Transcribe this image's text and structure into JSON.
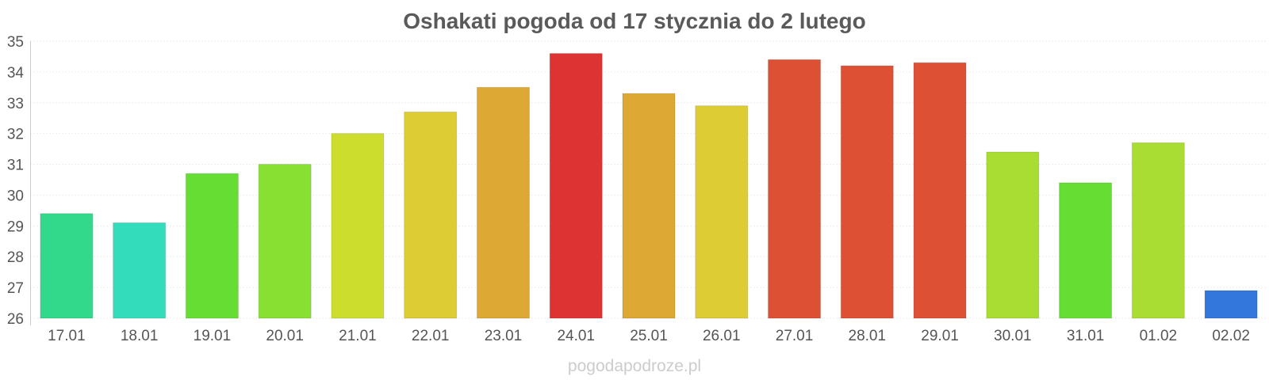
{
  "chart_data": {
    "type": "bar",
    "title": "Oshakati pogoda od 17 stycznia do 2 lutego",
    "xlabel": "",
    "ylabel": "",
    "ylim": [
      26,
      35
    ],
    "yticks": [
      "26",
      "27",
      "28",
      "29",
      "30",
      "31",
      "32",
      "33",
      "34",
      "35"
    ],
    "grid": true,
    "categories": [
      "17.01",
      "18.01",
      "19.01",
      "20.01",
      "21.01",
      "22.01",
      "23.01",
      "24.01",
      "25.01",
      "26.01",
      "27.01",
      "28.01",
      "29.01",
      "30.01",
      "31.01",
      "01.02",
      "02.02"
    ],
    "values": [
      29.4,
      29.1,
      30.7,
      31.0,
      32.0,
      32.7,
      33.5,
      34.6,
      33.3,
      32.9,
      34.4,
      34.2,
      34.3,
      31.4,
      30.4,
      31.7,
      26.9
    ],
    "colors": [
      "#33d98a",
      "#33ddbb",
      "#66dd33",
      "#88e033",
      "#ccdd2e",
      "#ddcc33",
      "#dda833",
      "#dd3333",
      "#dda833",
      "#ddcc33",
      "#dd5033",
      "#dd5033",
      "#dd5033",
      "#aadd33",
      "#66dd33",
      "#aadd33",
      "#3377dd"
    ]
  },
  "footer": {
    "credit": "pogodapodroze.pl"
  }
}
